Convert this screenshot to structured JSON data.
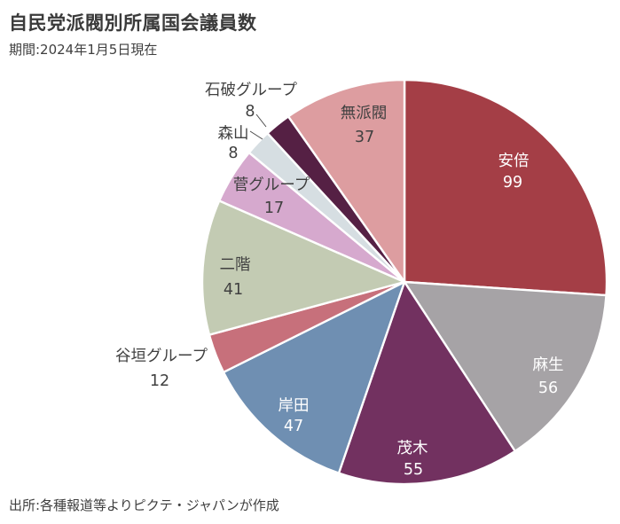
{
  "page": {
    "title": "自民党派閥別所属国会議員数",
    "subtitle": "期間:2024年1月5日現在",
    "source": "出所:各種報道等よりピクテ・ジャパンが作成"
  },
  "chart_data": {
    "type": "pie",
    "title": "自民党派閥別所属国会議員数",
    "subtitle": "期間:2024年1月5日現在",
    "source": "出所:各種報道等よりピクテ・ジャパンが作成",
    "total": 380,
    "start_angle_deg": 0,
    "direction": "clockwise",
    "legend_position": "none",
    "series": [
      {
        "label": "安倍",
        "value": 99,
        "color": "#A43E46",
        "label_placement": "inside",
        "label_color": "#FFFFFF"
      },
      {
        "label": "麻生",
        "value": 56,
        "color": "#A6A3A6",
        "label_placement": "inside",
        "label_color": "#FFFFFF"
      },
      {
        "label": "茂木",
        "value": 55,
        "color": "#723160",
        "label_placement": "inside",
        "label_color": "#FFFFFF"
      },
      {
        "label": "岸田",
        "value": 47,
        "color": "#6F8FB2",
        "label_placement": "inside",
        "label_color": "#FFFFFF"
      },
      {
        "label": "谷垣グループ",
        "value": 12,
        "color": "#C7707B",
        "label_placement": "outside",
        "label_color": "#404040"
      },
      {
        "label": "二階",
        "value": 41,
        "color": "#C3CBB3",
        "label_placement": "inside",
        "label_color": "#404040"
      },
      {
        "label": "菅グループ",
        "value": 17,
        "color": "#D6A9CE",
        "label_placement": "inside",
        "label_color": "#404040"
      },
      {
        "label": "森山",
        "value": 8,
        "color": "#D6DEE2",
        "label_placement": "outside",
        "label_color": "#404040"
      },
      {
        "label": "石破グループ",
        "value": 8,
        "color": "#552044",
        "label_placement": "outside",
        "label_color": "#404040"
      },
      {
        "label": "無派閥",
        "value": 37,
        "color": "#DD9DA0",
        "label_placement": "inside",
        "label_color": "#404040"
      }
    ],
    "slice_border_color": "#FFFFFF",
    "leader_line_color": "#4A4A4A"
  }
}
